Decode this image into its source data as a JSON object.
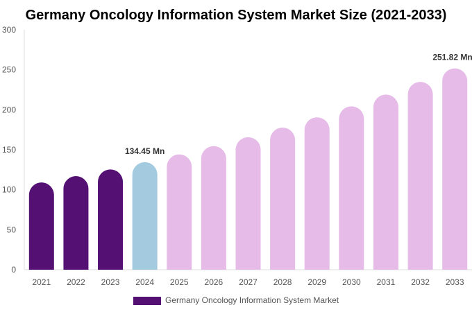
{
  "chart_data": {
    "type": "bar",
    "title": "Germany Oncology Information System Market Size (2021-2033)",
    "xlabel": "",
    "ylabel": "",
    "ylim": [
      0,
      300
    ],
    "yticks": [
      0,
      50,
      100,
      150,
      200,
      250,
      300
    ],
    "grid": false,
    "legend_position": "bottom",
    "categories": [
      "2021",
      "2022",
      "2023",
      "2024",
      "2025",
      "2026",
      "2027",
      "2028",
      "2029",
      "2030",
      "2031",
      "2032",
      "2033"
    ],
    "series": [
      {
        "name": "Germany Oncology Information System Market",
        "values": [
          109.1,
          117.0,
          125.4,
          134.45,
          144.2,
          154.6,
          165.7,
          177.7,
          190.5,
          204.3,
          219.0,
          234.9,
          251.82
        ]
      }
    ],
    "bar_colors": [
      "#541173",
      "#541173",
      "#541173",
      "#a3cadf",
      "#e6bbe8",
      "#e6bbe8",
      "#e6bbe8",
      "#e6bbe8",
      "#e6bbe8",
      "#e6bbe8",
      "#e6bbe8",
      "#e6bbe8",
      "#e6bbe8"
    ],
    "data_labels": [
      {
        "category": "2024",
        "text": "134.45 Mn"
      },
      {
        "category": "2033",
        "text": "251.82 Mn"
      }
    ],
    "legend_color": "#541173"
  }
}
